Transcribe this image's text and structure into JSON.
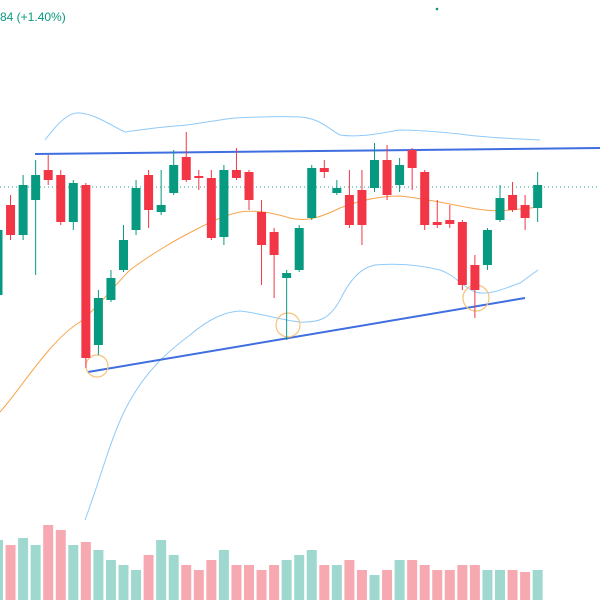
{
  "chart_data": {
    "type": "candlestick",
    "title": "84 (+1.40%)",
    "ylim": [
      0,
      520
    ],
    "vol_ylim": [
      0,
      80
    ],
    "colors": {
      "up": "#089981",
      "down": "#f23645",
      "up_volume": "#9fd8cf",
      "down_volume": "#f7a9b1"
    },
    "open": [
      225,
      315,
      285,
      320,
      350,
      345,
      298,
      335,
      175,
      220,
      250,
      290,
      345,
      308,
      327,
      363,
      344,
      342,
      283,
      350,
      348,
      308,
      288,
      242,
      250,
      302,
      352,
      327,
      325,
      330,
      332,
      360,
      335,
      370,
      348,
      298,
      300,
      298,
      255,
      255,
      300,
      325,
      315,
      312
    ],
    "high": [
      295,
      325,
      345,
      360,
      365,
      350,
      340,
      337,
      230,
      250,
      295,
      340,
      350,
      350,
      370,
      388,
      350,
      350,
      355,
      372,
      350,
      320,
      292,
      250,
      295,
      355,
      360,
      340,
      350,
      350,
      377,
      375,
      362,
      372,
      350,
      320,
      315,
      300,
      265,
      292,
      335,
      338,
      325,
      348
    ],
    "low": [
      220,
      280,
      280,
      245,
      335,
      295,
      290,
      152,
      165,
      218,
      248,
      285,
      292,
      305,
      325,
      338,
      330,
      280,
      275,
      340,
      310,
      235,
      222,
      180,
      248,
      300,
      342,
      325,
      292,
      275,
      328,
      320,
      328,
      330,
      290,
      292,
      292,
      230,
      202,
      250,
      298,
      308,
      290,
      298
    ],
    "close": [
      290,
      285,
      335,
      345,
      340,
      298,
      337,
      162,
      222,
      242,
      280,
      332,
      310,
      315,
      355,
      340,
      342,
      282,
      350,
      342,
      320,
      275,
      265,
      247,
      292,
      352,
      348,
      332,
      295,
      295,
      360,
      325,
      355,
      352,
      295,
      295,
      296,
      235,
      230,
      290,
      322,
      310,
      302,
      335
    ],
    "volume": [
      60,
      55,
      62,
      55,
      75,
      70,
      55,
      58,
      50,
      40,
      35,
      30,
      45,
      60,
      45,
      35,
      30,
      40,
      50,
      35,
      35,
      30,
      35,
      40,
      45,
      50,
      35,
      35,
      40,
      30,
      25,
      30,
      40,
      40,
      35,
      30,
      30,
      35,
      35,
      30,
      30,
      30,
      28,
      30
    ]
  }
}
